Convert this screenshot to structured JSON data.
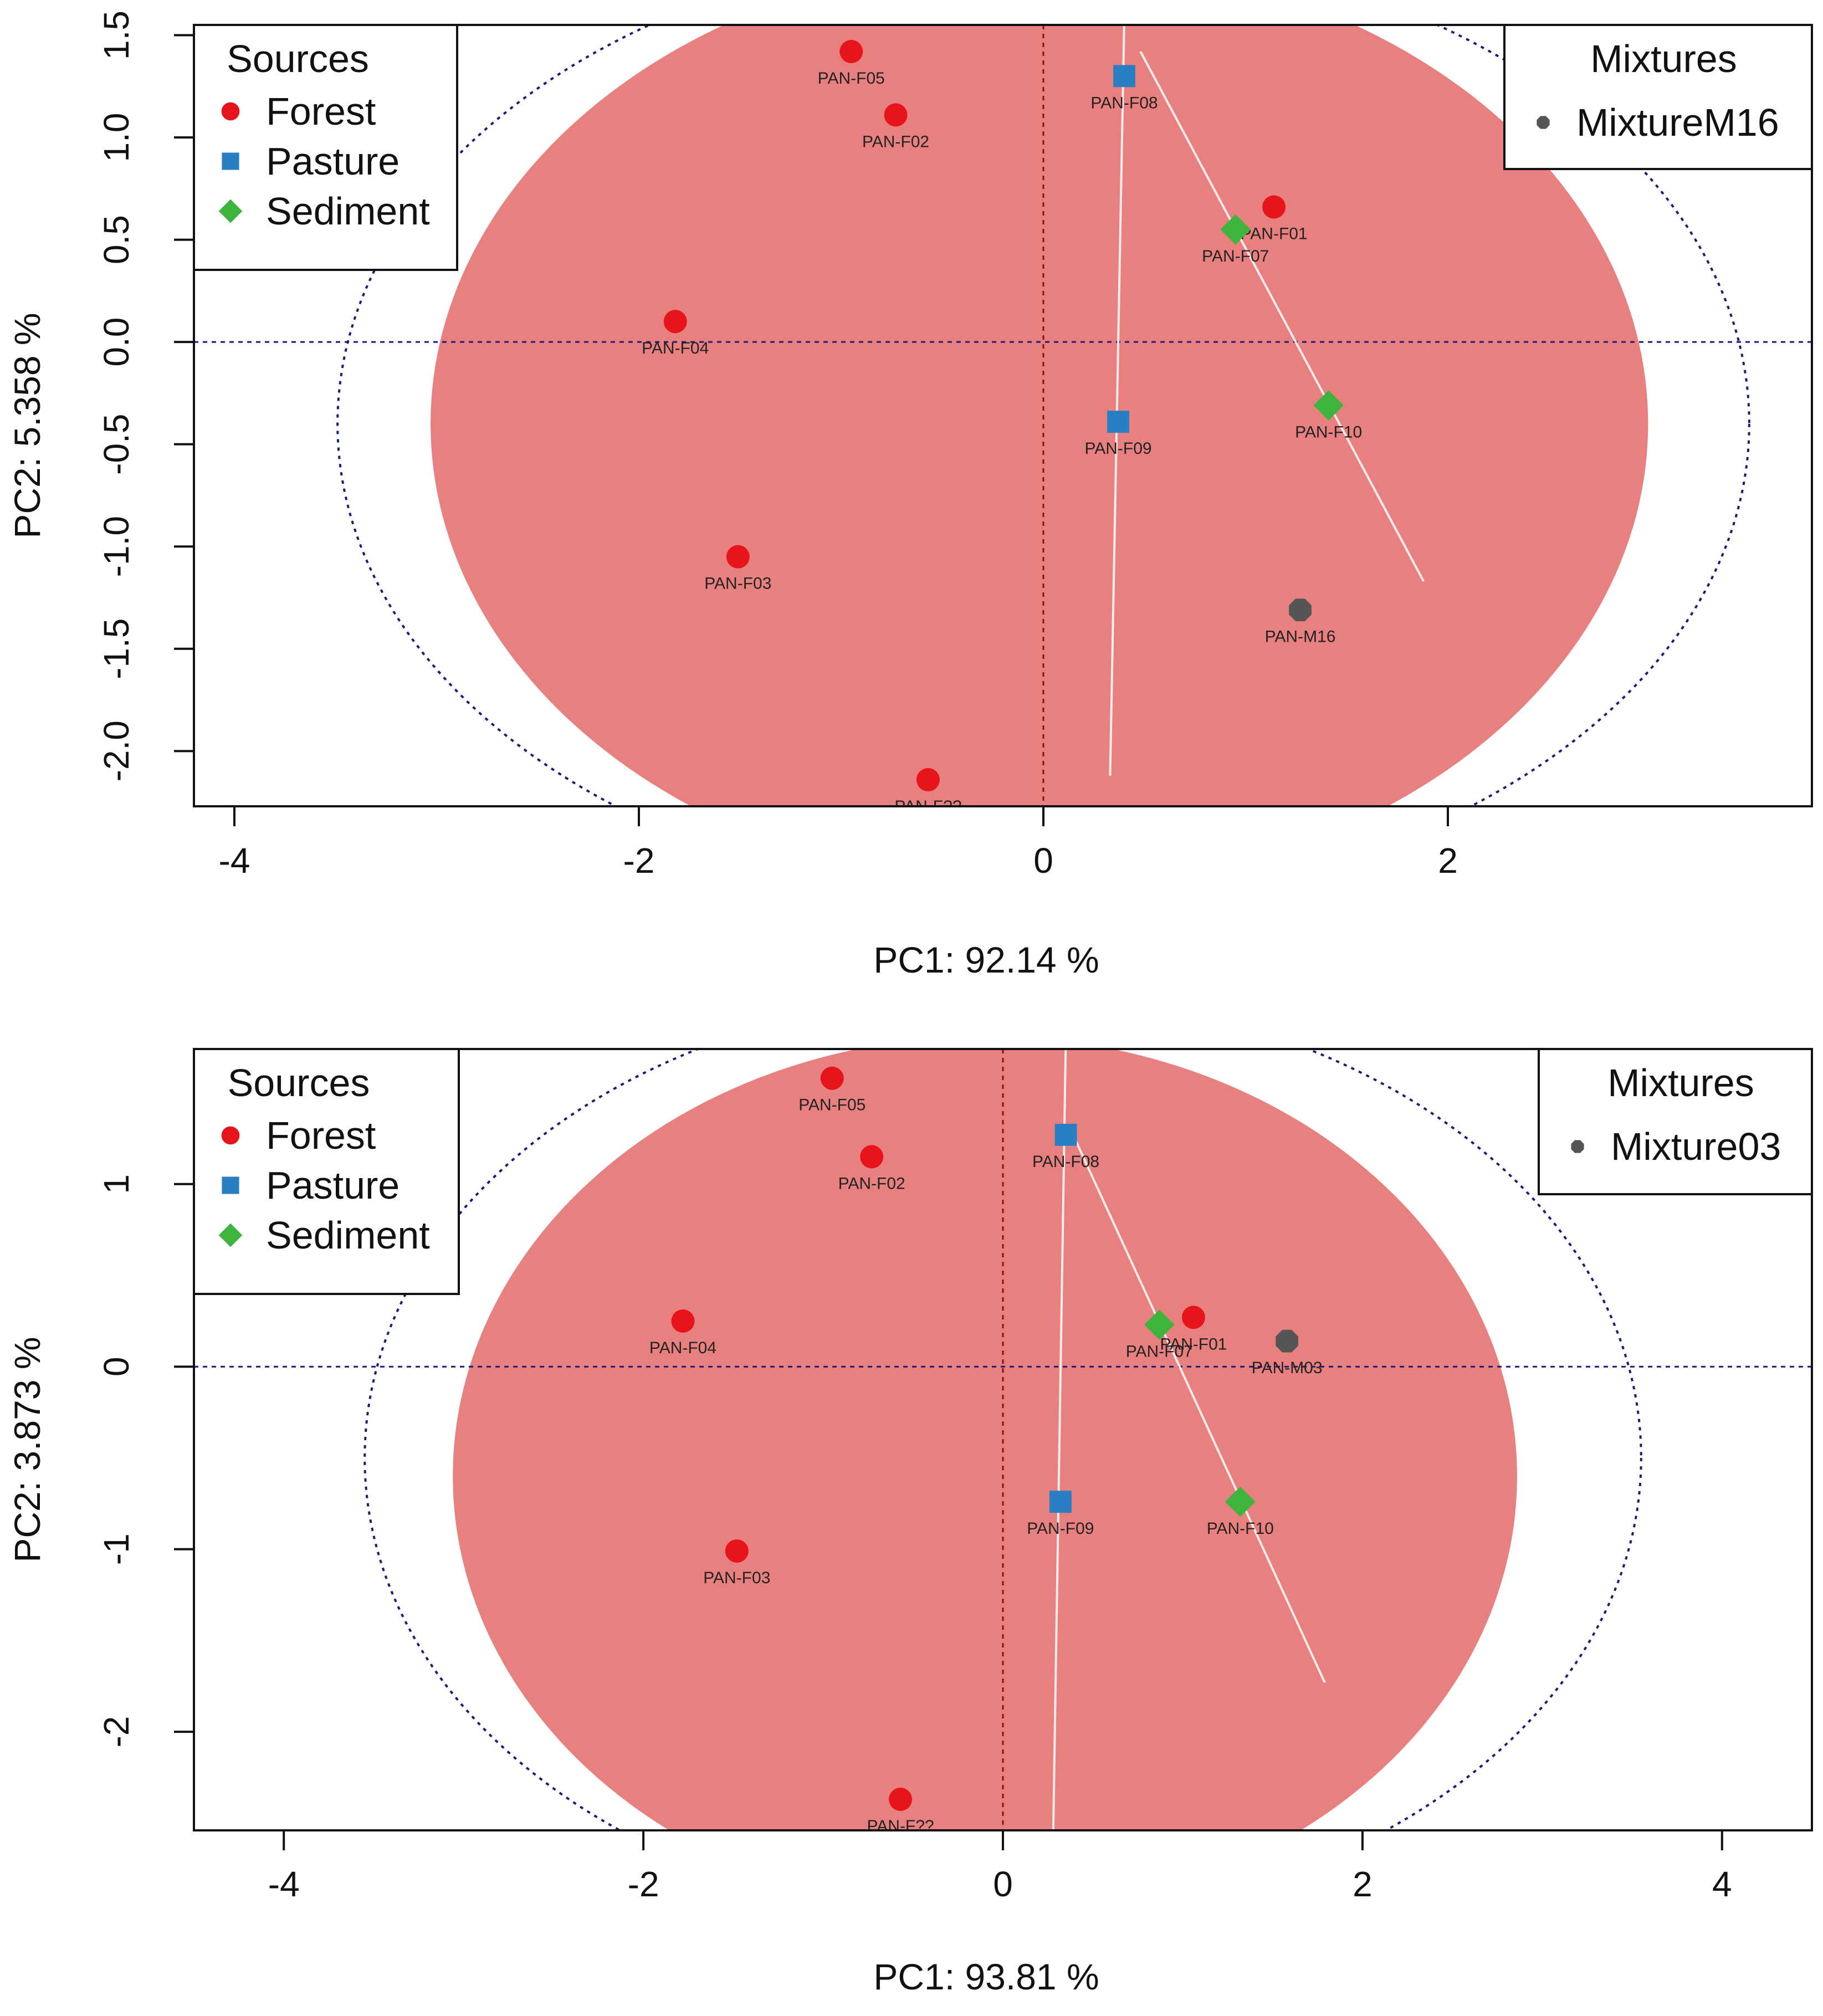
{
  "colors": {
    "forest": "#e8141b",
    "pasture": "#2a7fc4",
    "sediment": "#3eb43c",
    "mixture": "#555555",
    "ellipse": "#e98080",
    "circle": "#1a1a7a",
    "zero_line": "#1a1a7a"
  },
  "chart_data": [
    {
      "type": "scatter",
      "title": "",
      "xlabel": "PC1: 92.14 %",
      "ylabel": "PC2: 5.358 %",
      "xlim": [
        -4.2,
        3.8
      ],
      "ylim": [
        -2.27,
        1.55
      ],
      "xticks": [
        -4,
        -2,
        0,
        2
      ],
      "xtick_labels": [
        "-4",
        "-2",
        "0",
        "2"
      ],
      "yticks": [
        -2.0,
        -1.5,
        -1.0,
        -0.5,
        0.0,
        0.5,
        1.0,
        1.5
      ],
      "ytick_labels": [
        "-2.0",
        "-1.5",
        "-1.0",
        "-0.5",
        "0.0",
        "0.5",
        "1.0",
        "1.5"
      ],
      "legend_sources": {
        "title": "Sources",
        "items": [
          {
            "label": "Forest",
            "group": "forest"
          },
          {
            "label": "Pasture",
            "group": "pasture"
          },
          {
            "label": "Sediment",
            "group": "sediment"
          }
        ]
      },
      "legend_mixtures": {
        "title": "Mixtures",
        "items": [
          {
            "label": "MixtureM16",
            "group": "mixture"
          }
        ]
      },
      "points": [
        {
          "label": "PAN-F05",
          "group": "forest",
          "x": -0.95,
          "y": 1.42
        },
        {
          "label": "PAN-F02",
          "group": "forest",
          "x": -0.73,
          "y": 1.11
        },
        {
          "label": "PAN-F01",
          "group": "forest",
          "x": 1.14,
          "y": 0.66
        },
        {
          "label": "PAN-F04",
          "group": "forest",
          "x": -1.82,
          "y": 0.1
        },
        {
          "label": "PAN-F03",
          "group": "forest",
          "x": -1.51,
          "y": -1.05
        },
        {
          "label": "PAN-F??",
          "group": "forest",
          "x": -0.57,
          "y": -2.14
        },
        {
          "label": "PAN-F08",
          "group": "pasture",
          "x": 0.4,
          "y": 1.3
        },
        {
          "label": "PAN-F09",
          "group": "pasture",
          "x": 0.37,
          "y": -0.39
        },
        {
          "label": "PAN-F07",
          "group": "sediment",
          "x": 0.95,
          "y": 0.55
        },
        {
          "label": "PAN-F10",
          "group": "sediment",
          "x": 1.41,
          "y": -0.31
        },
        {
          "label": "PAN-M16",
          "group": "mixture",
          "x": 1.27,
          "y": -1.31
        }
      ],
      "ellipse": {
        "cx": -0.02,
        "cy": -0.4,
        "rx": 3.01,
        "ry": 2.28
      },
      "circle": {
        "cx": 0.0,
        "cy": -0.4,
        "rx": 3.49,
        "ry": 2.35
      },
      "white_lines": [
        {
          "x1": 0.4,
          "y1": 1.58,
          "x2": 0.33,
          "y2": -2.12
        },
        {
          "x1": 0.48,
          "y1": 1.42,
          "x2": 1.88,
          "y2": -1.17
        }
      ]
    },
    {
      "type": "scatter",
      "title": "",
      "xlabel": "PC1: 93.81 %",
      "ylabel": "PC2: 3.873 %",
      "xlim": [
        -4.5,
        4.5
      ],
      "ylim": [
        -2.54,
        1.74
      ],
      "xticks": [
        -4,
        -2,
        0,
        2,
        4
      ],
      "xtick_labels": [
        "-4",
        "-2",
        "0",
        "2",
        "4"
      ],
      "yticks": [
        -2,
        -1,
        0,
        1
      ],
      "ytick_labels": [
        "-2",
        "-1",
        "0",
        "1"
      ],
      "legend_sources": {
        "title": "Sources",
        "items": [
          {
            "label": "Forest",
            "group": "forest"
          },
          {
            "label": "Pasture",
            "group": "pasture"
          },
          {
            "label": "Sediment",
            "group": "sediment"
          }
        ]
      },
      "legend_mixtures": {
        "title": "Mixtures",
        "items": [
          {
            "label": "Mixture03",
            "group": "mixture"
          }
        ]
      },
      "points": [
        {
          "label": "PAN-F05",
          "group": "forest",
          "x": -0.95,
          "y": 1.58
        },
        {
          "label": "PAN-F02",
          "group": "forest",
          "x": -0.73,
          "y": 1.15
        },
        {
          "label": "PAN-F01",
          "group": "forest",
          "x": 1.06,
          "y": 0.27
        },
        {
          "label": "PAN-F04",
          "group": "forest",
          "x": -1.78,
          "y": 0.25
        },
        {
          "label": "PAN-F03",
          "group": "forest",
          "x": -1.48,
          "y": -1.01
        },
        {
          "label": "PAN-F??",
          "group": "forest",
          "x": -0.57,
          "y": -2.37
        },
        {
          "label": "PAN-F08",
          "group": "pasture",
          "x": 0.35,
          "y": 1.27
        },
        {
          "label": "PAN-F09",
          "group": "pasture",
          "x": 0.32,
          "y": -0.74
        },
        {
          "label": "PAN-F07",
          "group": "sediment",
          "x": 0.87,
          "y": 0.23
        },
        {
          "label": "PAN-F10",
          "group": "sediment",
          "x": 1.32,
          "y": -0.74
        },
        {
          "label": "PAN-M03",
          "group": "mixture",
          "x": 1.58,
          "y": 0.14
        }
      ],
      "ellipse": {
        "cx": -0.1,
        "cy": -0.6,
        "rx": 2.96,
        "ry": 2.41
      },
      "circle": {
        "cx": 0.0,
        "cy": -0.5,
        "rx": 3.55,
        "ry": 2.55
      },
      "white_lines": [
        {
          "x1": 0.35,
          "y1": 1.8,
          "x2": 0.28,
          "y2": -2.54
        },
        {
          "x1": 0.39,
          "y1": 1.27,
          "x2": 1.79,
          "y2": -1.73
        }
      ]
    }
  ]
}
